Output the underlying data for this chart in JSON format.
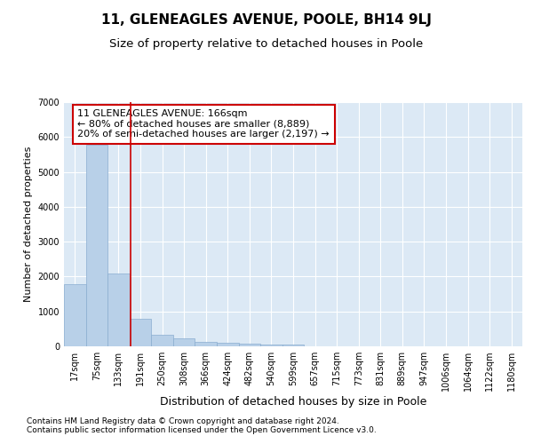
{
  "title": "11, GLENEAGLES AVENUE, POOLE, BH14 9LJ",
  "subtitle": "Size of property relative to detached houses in Poole",
  "xlabel": "Distribution of detached houses by size in Poole",
  "ylabel": "Number of detached properties",
  "categories": [
    "17sqm",
    "75sqm",
    "133sqm",
    "191sqm",
    "250sqm",
    "308sqm",
    "366sqm",
    "424sqm",
    "482sqm",
    "540sqm",
    "599sqm",
    "657sqm",
    "715sqm",
    "773sqm",
    "831sqm",
    "889sqm",
    "947sqm",
    "1006sqm",
    "1064sqm",
    "1122sqm",
    "1180sqm"
  ],
  "values": [
    1780,
    5780,
    2080,
    800,
    340,
    220,
    120,
    100,
    70,
    60,
    60,
    0,
    0,
    0,
    0,
    0,
    0,
    0,
    0,
    0,
    0
  ],
  "bar_color": "#b8d0e8",
  "bar_edge_color": "#8aadd0",
  "vline_x_index": 2.55,
  "vline_color": "#cc0000",
  "annotation_text": "11 GLENEAGLES AVENUE: 166sqm\n← 80% of detached houses are smaller (8,889)\n20% of semi-detached houses are larger (2,197) →",
  "annotation_box_color": "#ffffff",
  "annotation_box_edge_color": "#cc0000",
  "ylim": [
    0,
    7000
  ],
  "yticks": [
    0,
    1000,
    2000,
    3000,
    4000,
    5000,
    6000,
    7000
  ],
  "plot_bg_color": "#dce9f5",
  "footer_line1": "Contains HM Land Registry data © Crown copyright and database right 2024.",
  "footer_line2": "Contains public sector information licensed under the Open Government Licence v3.0.",
  "title_fontsize": 11,
  "subtitle_fontsize": 9.5,
  "xlabel_fontsize": 9,
  "ylabel_fontsize": 8,
  "tick_fontsize": 7,
  "annotation_fontsize": 8,
  "footer_fontsize": 6.5
}
